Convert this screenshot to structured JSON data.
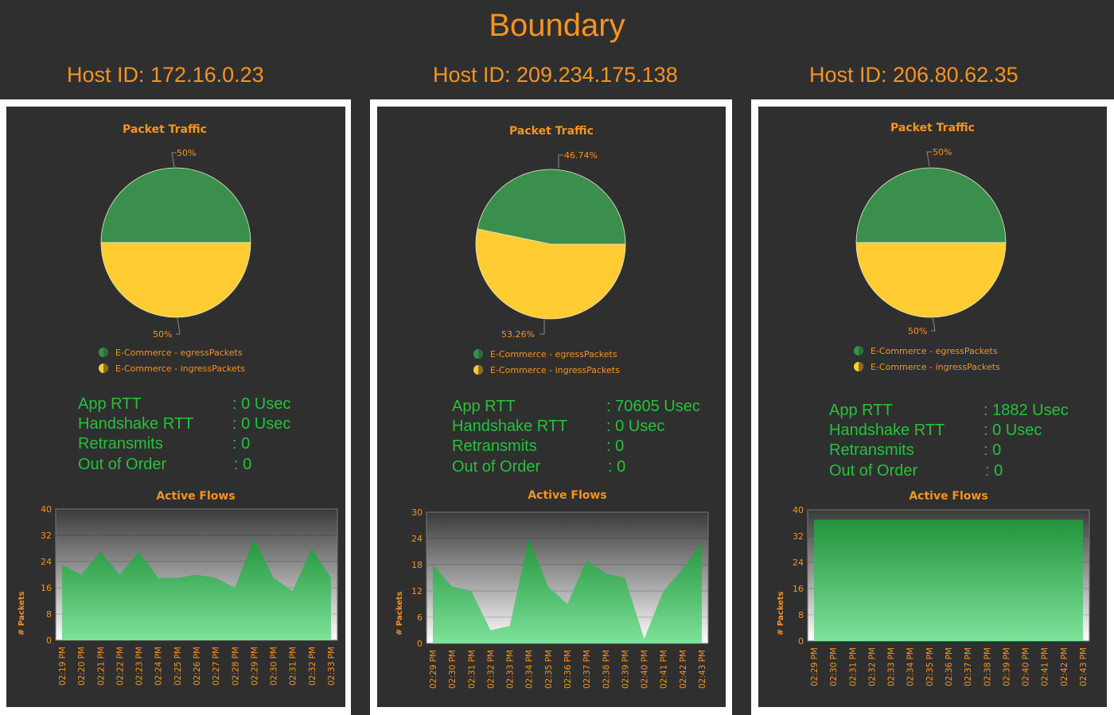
{
  "app": {
    "title": "Boundary"
  },
  "colors": {
    "accent": "#f7931e",
    "egress": "#3a8f4c",
    "ingress": "#ffcc33",
    "metric": "#26c13b"
  },
  "hosts": [
    {
      "host_label": "Host ID: 172.16.0.23",
      "pie": {
        "title": "Packet Traffic",
        "egress_label": "50%",
        "ingress_label": "50%",
        "legend": [
          "E-Commerce - egressPackets",
          "E-Commerce - ingressPackets"
        ]
      },
      "metrics": [
        {
          "label": "App RTT",
          "value": ": 0 Usec"
        },
        {
          "label": "Handshake RTT",
          "value": ": 0 Usec"
        },
        {
          "label": "Retransmits",
          "value": ": 0"
        },
        {
          "label": "Out of Order",
          "value": ": 0"
        }
      ],
      "flows": {
        "title": "Active Flows",
        "ylabel": "# Packets"
      }
    },
    {
      "host_label": "Host ID: 209.234.175.138",
      "pie": {
        "title": "Packet Traffic",
        "egress_label": "46.74%",
        "ingress_label": "53.26%",
        "legend": [
          "E-Commerce - egressPackets",
          "E-Commerce - ingressPackets"
        ]
      },
      "metrics": [
        {
          "label": "App RTT",
          "value": ": 70605 Usec"
        },
        {
          "label": "Handshake RTT",
          "value": ": 0 Usec"
        },
        {
          "label": "Retransmits",
          "value": ": 0"
        },
        {
          "label": "Out of Order",
          "value": ": 0"
        }
      ],
      "flows": {
        "title": "Active Flows",
        "ylabel": "# Packets"
      }
    },
    {
      "host_label": "Host ID: 206.80.62.35",
      "pie": {
        "title": "Packet Traffic",
        "egress_label": "50%",
        "ingress_label": "50%",
        "legend": [
          "E-Commerce - egressPackets",
          "E-Commerce - ingressPackets"
        ]
      },
      "metrics": [
        {
          "label": "App RTT",
          "value": ": 1882 Usec"
        },
        {
          "label": "Handshake RTT",
          "value": ": 0 Usec"
        },
        {
          "label": "Retransmits",
          "value": ": 0"
        },
        {
          "label": "Out of Order",
          "value": ": 0"
        }
      ],
      "flows": {
        "title": "Active Flows",
        "ylabel": "# Packets"
      }
    }
  ],
  "chart_data": [
    {
      "type": "pie",
      "title": "Packet Traffic",
      "labels": [
        "E-Commerce - egressPackets",
        "E-Commerce - ingressPackets"
      ],
      "values": [
        50,
        50
      ]
    },
    {
      "type": "pie",
      "title": "Packet Traffic",
      "labels": [
        "E-Commerce - egressPackets",
        "E-Commerce - ingressPackets"
      ],
      "values": [
        46.74,
        53.26
      ]
    },
    {
      "type": "pie",
      "title": "Packet Traffic",
      "labels": [
        "E-Commerce - egressPackets",
        "E-Commerce - ingressPackets"
      ],
      "values": [
        50,
        50
      ]
    },
    {
      "type": "area",
      "title": "Active Flows",
      "xlabel": "",
      "ylabel": "# Packets",
      "ylim": [
        0,
        40
      ],
      "yticks": [
        "0",
        "8",
        "16",
        "24",
        "32",
        "40"
      ],
      "x": [
        "02:19 PM",
        "02:20 PM",
        "02:21 PM",
        "02:22 PM",
        "02:23 PM",
        "02:24 PM",
        "02:25 PM",
        "02:26 PM",
        "02:27 PM",
        "02:28 PM",
        "02:29 PM",
        "02:30 PM",
        "02:31 PM",
        "02:32 PM",
        "02:33 PM"
      ],
      "values": [
        23,
        20,
        27,
        20,
        27,
        19,
        19,
        20,
        19,
        16,
        31,
        19,
        15,
        28,
        19
      ]
    },
    {
      "type": "area",
      "title": "Active Flows",
      "xlabel": "",
      "ylabel": "# Packets",
      "ylim": [
        0,
        30
      ],
      "yticks": [
        "0",
        "6",
        "12",
        "18",
        "24",
        "30"
      ],
      "x": [
        "02:29 PM",
        "02:30 PM",
        "02:31 PM",
        "02:32 PM",
        "02:33 PM",
        "02:34 PM",
        "02:35 PM",
        "02:36 PM",
        "02:37 PM",
        "02:38 PM",
        "02:39 PM",
        "02:40 PM",
        "02:41 PM",
        "02:42 PM",
        "02:43 PM"
      ],
      "values": [
        18,
        13,
        12,
        3,
        4,
        24,
        13,
        9,
        19,
        16,
        15,
        1,
        12,
        17,
        23
      ]
    },
    {
      "type": "area",
      "title": "Active Flows",
      "xlabel": "",
      "ylabel": "# Packets",
      "ylim": [
        0,
        40
      ],
      "yticks": [
        "0",
        "8",
        "16",
        "24",
        "32",
        "40"
      ],
      "x": [
        "02:29 PM",
        "02:30 PM",
        "02:31 PM",
        "02:32 PM",
        "02:33 PM",
        "02:34 PM",
        "02:35 PM",
        "02:36 PM",
        "02:37 PM",
        "02:38 PM",
        "02:39 PM",
        "02:40 PM",
        "02:41 PM",
        "02:42 PM",
        "02:43 PM"
      ],
      "values": [
        37,
        37,
        37,
        37,
        37,
        37,
        37,
        37,
        37,
        37,
        37,
        37,
        37,
        37,
        37
      ]
    }
  ]
}
